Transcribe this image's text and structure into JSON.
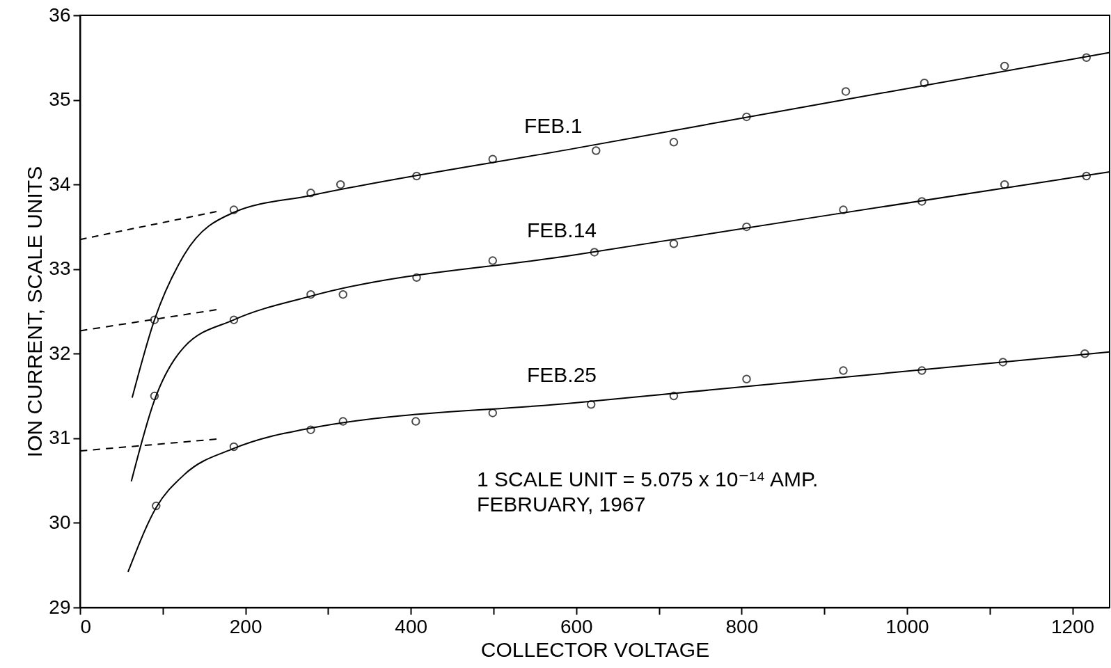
{
  "chart_data": {
    "type": "scatter",
    "xlabel": "COLLECTOR VOLTAGE",
    "ylabel": "ION CURRENT, SCALE UNITS",
    "xlim": [
      0,
      1245
    ],
    "ylim": [
      29,
      36
    ],
    "xticks": [
      0,
      {
        "value": 100,
        "label": null
      },
      200,
      {
        "value": 300,
        "label": null
      },
      400,
      {
        "value": 500,
        "label": null
      },
      600,
      {
        "value": 700,
        "label": null
      },
      800,
      {
        "value": 900,
        "label": null
      },
      1000,
      {
        "value": 1100,
        "label": null
      },
      1200
    ],
    "yticks": [
      29,
      30,
      31,
      32,
      33,
      34,
      35,
      36
    ],
    "grid": false,
    "marker": "circle",
    "series": [
      {
        "color": "#000000",
        "x": [
          90,
          186,
          279,
          315,
          407,
          499,
          624,
          718,
          806,
          926,
          1021,
          1118,
          1217
        ],
        "values": [
          32.4,
          33.7,
          33.9,
          34.0,
          34.1,
          34.3,
          34.4,
          34.5,
          34.8,
          35.1,
          35.2,
          35.4,
          35.5
        ]
      },
      {
        "color": "#000000",
        "x": [
          90,
          186,
          279,
          318,
          407,
          499,
          622,
          718,
          806,
          923,
          1018,
          1118,
          1217
        ],
        "values": [
          31.5,
          32.4,
          32.7,
          32.7,
          32.9,
          33.1,
          33.2,
          33.3,
          33.5,
          33.7,
          33.8,
          34.0,
          34.1
        ]
      },
      {
        "color": "#000000",
        "x": [
          92,
          186,
          279,
          318,
          406,
          499,
          618,
          718,
          806,
          923,
          1018,
          1116,
          1215
        ],
        "values": [
          30.2,
          30.9,
          31.1,
          31.2,
          31.2,
          31.3,
          31.4,
          31.5,
          31.7,
          31.8,
          31.8,
          31.9,
          32.0
        ]
      },
      {
        "type": "line",
        "marker": "none",
        "color": "#000000",
        "line_style": "solid",
        "x": [
          63,
          90,
          126,
          186,
          279,
          600,
          900,
          1245
        ],
        "values": [
          31.48,
          32.4,
          33.17,
          33.67,
          33.87,
          34.43,
          34.96,
          35.56
        ]
      },
      {
        "type": "line",
        "marker": "none",
        "color": "#000000",
        "line_style": "solid",
        "x": [
          62,
          90,
          126,
          186,
          279,
          600,
          900,
          1245
        ],
        "values": [
          30.49,
          31.45,
          32.08,
          32.4,
          32.68,
          33.17,
          33.63,
          34.15
        ]
      },
      {
        "type": "line",
        "marker": "none",
        "color": "#000000",
        "line_style": "solid",
        "x": [
          58,
          92,
          126,
          186,
          279,
          600,
          900,
          1245
        ],
        "values": [
          29.42,
          30.18,
          30.57,
          30.88,
          31.12,
          31.42,
          31.7,
          32.02
        ]
      },
      {
        "type": "line",
        "marker": "none",
        "color": "#000000",
        "line_style": "dashed",
        "x": [
          0,
          165
        ],
        "values": [
          33.35,
          33.68
        ]
      },
      {
        "type": "line",
        "marker": "none",
        "color": "#000000",
        "line_style": "dashed",
        "x": [
          0,
          165
        ],
        "values": [
          32.27,
          32.52
        ]
      },
      {
        "type": "line",
        "marker": "none",
        "color": "#000000",
        "line_style": "dashed",
        "x": [
          0,
          165
        ],
        "values": [
          30.85,
          30.99
        ]
      }
    ],
    "annotations": [
      "FEB.1",
      "FEB.14",
      "FEB.25",
      "1 SCALE UNIT = 5.075 x 10⁻¹⁴ AMP.",
      "FEBRUARY, 1967"
    ]
  }
}
